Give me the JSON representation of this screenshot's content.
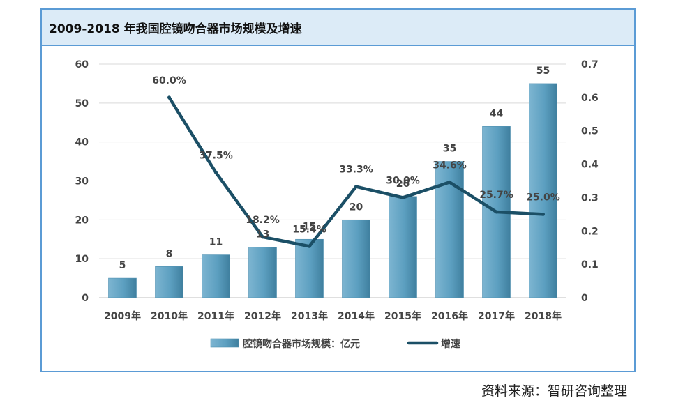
{
  "header": {
    "title": "2009-2018 年我国腔镜吻合器市场规模及增速"
  },
  "footer": {
    "source": "资料来源：智研咨询整理"
  },
  "chart_data": {
    "type": "bar",
    "title": "2009-2018 年我国腔镜吻合器市场规模及增速",
    "categories": [
      "2009年",
      "2010年",
      "2011年",
      "2012年",
      "2013年",
      "2014年",
      "2015年",
      "2016年",
      "2017年",
      "2018年"
    ],
    "series": [
      {
        "name": "腔镜吻合器市场规模：亿元",
        "type": "bar",
        "axis": "left",
        "values": [
          5,
          8,
          11,
          13,
          15,
          20,
          26,
          35,
          44,
          55
        ],
        "labels": [
          "5",
          "8",
          "11",
          "13",
          "15",
          "20",
          "26",
          "35",
          "44",
          "55"
        ]
      },
      {
        "name": "增速",
        "type": "line",
        "axis": "right",
        "values": [
          null,
          0.6,
          0.375,
          0.182,
          0.154,
          0.333,
          0.3,
          0.346,
          0.257,
          0.25
        ],
        "labels": [
          "",
          "60.0%",
          "37.5%",
          "18.2%",
          "15.4%",
          "33.3%",
          "30.0%",
          "34.6%",
          "25.7%",
          "25.0%"
        ]
      }
    ],
    "y_left": {
      "min": 0,
      "max": 60,
      "ticks": [
        "0",
        "10",
        "20",
        "30",
        "40",
        "50",
        "60"
      ]
    },
    "y_right": {
      "min": 0,
      "max": 0.7,
      "ticks": [
        "0",
        "0.1",
        "0.2",
        "0.3",
        "0.4",
        "0.5",
        "0.6",
        "0.7"
      ]
    },
    "grid": true,
    "legend_position": "bottom",
    "colors": {
      "bar": "#5c9fc0",
      "bar_dark": "#3f7f9e",
      "line": "#1b4f66",
      "grid": "#d9d9d9",
      "text": "#444444"
    }
  }
}
